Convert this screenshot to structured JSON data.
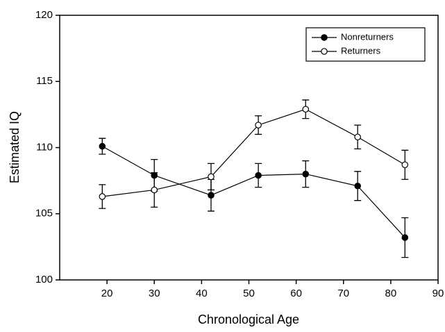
{
  "chart_data": {
    "type": "line",
    "x_label": "Chronological Age",
    "y_label": "Estimated IQ",
    "x": [
      19,
      30,
      42,
      52,
      62,
      73,
      83
    ],
    "series": [
      {
        "name": "Nonreturners",
        "color": "#000000",
        "marker": "filled",
        "values": [
          110.1,
          107.9,
          106.4,
          107.9,
          108.0,
          107.1,
          103.2
        ],
        "errors": [
          0.6,
          1.2,
          1.2,
          0.9,
          1.0,
          1.1,
          1.5
        ]
      },
      {
        "name": "Returners",
        "color": "#000000",
        "marker": "open",
        "values": [
          106.3,
          106.8,
          107.8,
          111.7,
          112.9,
          110.8,
          108.7
        ],
        "errors": [
          0.9,
          1.3,
          1.0,
          0.7,
          0.7,
          0.9,
          1.1
        ]
      }
    ],
    "xlim": [
      10,
      90
    ],
    "xticks": [
      20,
      30,
      40,
      50,
      60,
      70,
      80,
      90
    ],
    "ylim": [
      100,
      120
    ],
    "yticks": [
      100,
      105,
      110,
      115,
      120
    ],
    "legend": "upper right"
  }
}
